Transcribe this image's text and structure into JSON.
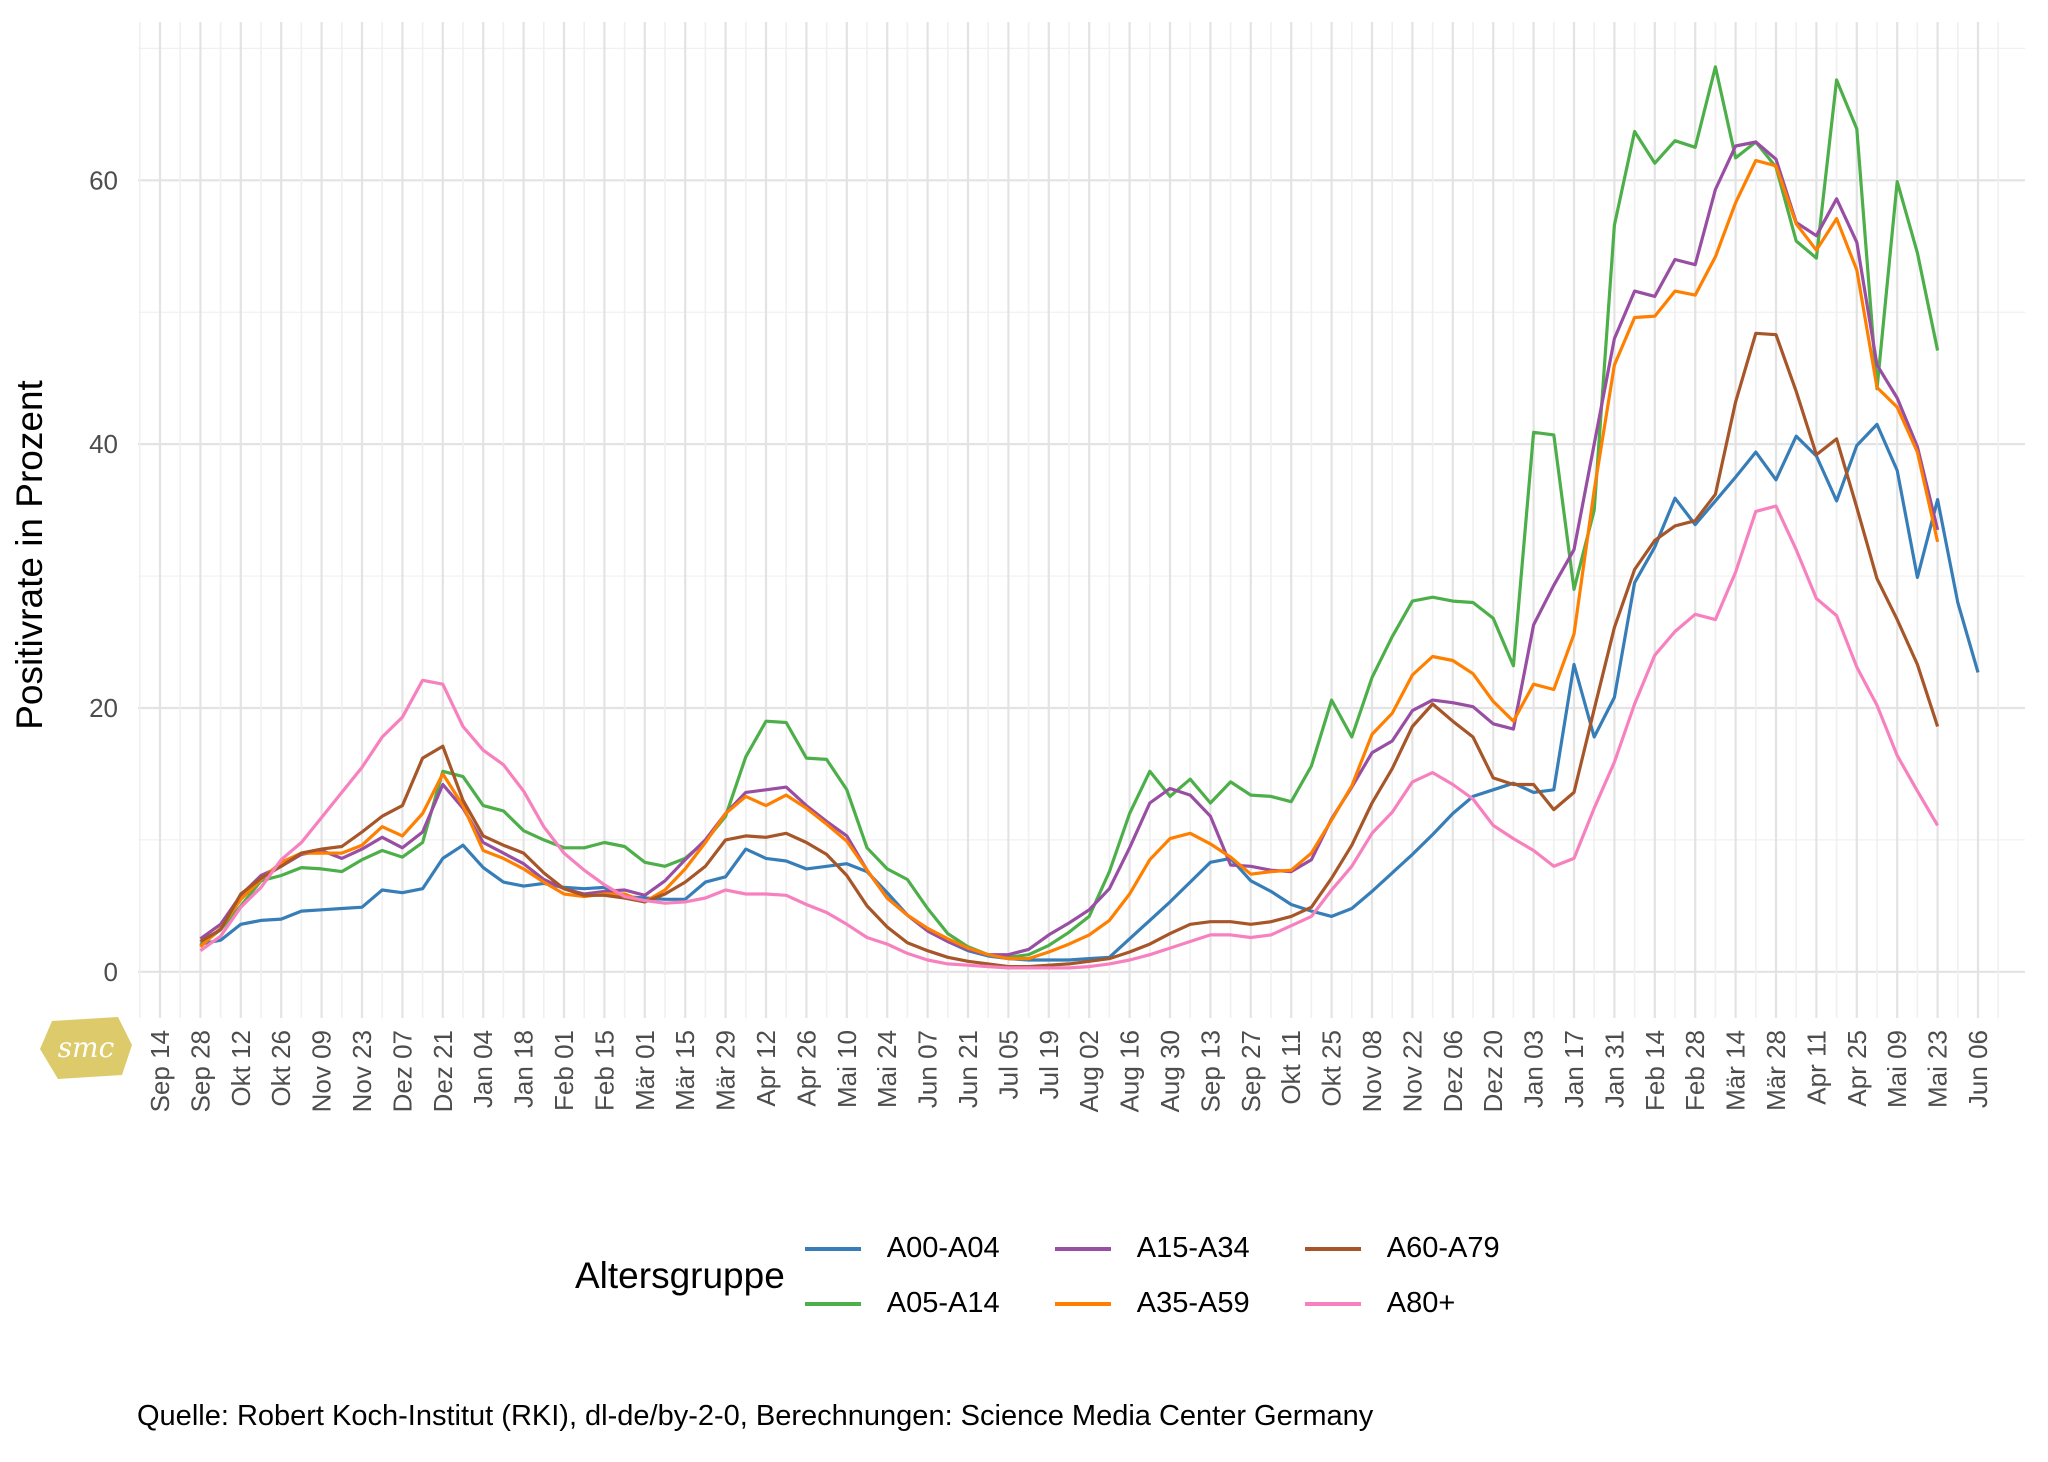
{
  "chart_data": {
    "type": "line",
    "ylabel": "Positivrate in Prozent",
    "ylim": [
      -3.5,
      72
    ],
    "yticks": [
      0,
      20,
      40,
      60
    ],
    "x_tick_labels": [
      "Sep 14",
      "Sep 28",
      "Okt 12",
      "Okt 26",
      "Nov 09",
      "Nov 23",
      "Dez 07",
      "Dez 21",
      "Jan 04",
      "Jan 18",
      "Feb 01",
      "Feb 15",
      "Mär 01",
      "Mär 15",
      "Mär 29",
      "Apr 12",
      "Apr 26",
      "Mai 10",
      "Mai 24",
      "Jun 07",
      "Jun 21",
      "Jul 05",
      "Jul 19",
      "Aug 02",
      "Aug 16",
      "Aug 30",
      "Sep 13",
      "Sep 27",
      "Okt 11",
      "Okt 25",
      "Nov 08",
      "Nov 22",
      "Dez 06",
      "Dez 20",
      "Jan 03",
      "Jan 17",
      "Jan 31",
      "Feb 14",
      "Feb 28",
      "Mär 14",
      "Mär 28",
      "Apr 11",
      "Apr 25",
      "Mai 09",
      "Mai 23",
      "Jun 06"
    ],
    "x_weekly_start_tick_index": 1,
    "legend_title": "Altersgruppe",
    "legend_position": "bottom",
    "grid": true,
    "series": [
      {
        "name": "A00-A04",
        "color": "#377eb8",
        "values": [
          2.1,
          2.4,
          3.6,
          3.9,
          4.0,
          4.6,
          4.7,
          4.8,
          4.9,
          6.2,
          6.0,
          6.3,
          8.6,
          9.6,
          7.9,
          6.8,
          6.5,
          6.7,
          6.4,
          6.3,
          6.4,
          5.7,
          5.6,
          5.5,
          5.5,
          6.8,
          7.2,
          9.3,
          8.6,
          8.4,
          7.8,
          8.0,
          8.2,
          7.6,
          6.0,
          4.3,
          3.1,
          2.3,
          1.6,
          1.2,
          1.0,
          0.9,
          0.9,
          0.9,
          1.0,
          1.1,
          2.5,
          3.9,
          5.3,
          6.8,
          8.3,
          8.6,
          6.9,
          6.1,
          5.1,
          4.6,
          4.2,
          4.8,
          6.1,
          7.5,
          8.9,
          10.4,
          12.0,
          13.3,
          13.8,
          14.3,
          13.6,
          13.8,
          23.3,
          17.8,
          20.8,
          29.5,
          32.2,
          35.9,
          33.9,
          35.7,
          37.5,
          39.4,
          37.3,
          40.6,
          39.1,
          35.7,
          39.9,
          41.5,
          38.0,
          29.9,
          35.8,
          28.0,
          22.7
        ]
      },
      {
        "name": "A05-A14",
        "color": "#4daf4a",
        "values": [
          2.0,
          3.2,
          5.0,
          6.9,
          7.3,
          7.9,
          7.8,
          7.6,
          8.5,
          9.2,
          8.7,
          9.8,
          15.2,
          14.8,
          12.6,
          12.2,
          10.7,
          10.0,
          9.4,
          9.4,
          9.8,
          9.5,
          8.3,
          8.0,
          8.6,
          9.9,
          11.8,
          16.3,
          19.0,
          18.9,
          16.2,
          16.1,
          13.8,
          9.4,
          7.8,
          7.0,
          4.8,
          2.9,
          1.9,
          1.3,
          1.1,
          1.3,
          2.0,
          3.0,
          4.2,
          7.6,
          12.0,
          15.2,
          13.3,
          14.6,
          12.8,
          14.4,
          13.4,
          13.3,
          12.9,
          15.6,
          20.6,
          17.8,
          22.3,
          25.4,
          28.1,
          28.4,
          28.1,
          28.0,
          26.8,
          23.2,
          40.9,
          40.7,
          29.0,
          35.0,
          56.6,
          63.7,
          61.3,
          63.0,
          62.5,
          68.6,
          61.7,
          62.9,
          61.0,
          55.4,
          54.1,
          67.6,
          63.9,
          44.2,
          59.9,
          54.5,
          47.1
        ]
      },
      {
        "name": "A15-A34",
        "color": "#984ea3",
        "values": [
          2.5,
          3.6,
          5.8,
          7.3,
          8.0,
          8.9,
          9.2,
          8.6,
          9.3,
          10.2,
          9.4,
          10.6,
          14.2,
          12.4,
          9.8,
          9.0,
          8.2,
          7.0,
          6.3,
          5.9,
          6.1,
          6.2,
          5.8,
          6.9,
          8.5,
          10.0,
          12.0,
          13.6,
          13.8,
          14.0,
          12.6,
          11.4,
          10.3,
          7.7,
          5.6,
          4.3,
          3.1,
          2.3,
          1.7,
          1.3,
          1.3,
          1.7,
          2.8,
          3.7,
          4.7,
          6.3,
          9.4,
          12.8,
          13.9,
          13.4,
          11.8,
          8.1,
          8.0,
          7.7,
          7.6,
          8.5,
          11.6,
          14.0,
          16.6,
          17.5,
          19.8,
          20.6,
          20.4,
          20.1,
          18.8,
          18.4,
          26.3,
          29.3,
          32.0,
          40.0,
          48.0,
          51.6,
          51.2,
          54.0,
          53.6,
          59.3,
          62.6,
          62.9,
          61.6,
          56.8,
          55.8,
          58.6,
          55.3,
          46.0,
          43.5,
          39.8,
          33.5
        ]
      },
      {
        "name": "A35-A59",
        "color": "#ff7f00",
        "values": [
          1.9,
          3.3,
          5.5,
          7.0,
          8.3,
          9.0,
          9.0,
          9.0,
          9.6,
          11.0,
          10.3,
          12.0,
          15.0,
          12.6,
          9.2,
          8.6,
          7.8,
          6.8,
          5.9,
          5.7,
          5.9,
          5.9,
          5.3,
          6.2,
          7.8,
          9.8,
          12.0,
          13.3,
          12.6,
          13.4,
          12.4,
          11.2,
          9.9,
          7.7,
          5.6,
          4.3,
          3.3,
          2.5,
          1.8,
          1.3,
          1.0,
          1.0,
          1.5,
          2.1,
          2.8,
          3.9,
          5.9,
          8.5,
          10.1,
          10.5,
          9.7,
          8.7,
          7.4,
          7.6,
          7.7,
          9.0,
          11.5,
          14.1,
          18.0,
          19.6,
          22.5,
          23.9,
          23.6,
          22.6,
          20.5,
          19.0,
          21.8,
          21.4,
          25.6,
          36.5,
          46.0,
          49.6,
          49.7,
          51.6,
          51.3,
          54.2,
          58.3,
          61.5,
          61.1,
          56.7,
          54.7,
          57.1,
          53.2,
          44.3,
          42.8,
          39.4,
          32.6
        ]
      },
      {
        "name": "A60-A79",
        "color": "#a65628",
        "values": [
          2.3,
          3.2,
          5.9,
          7.1,
          8.0,
          9.0,
          9.3,
          9.5,
          10.6,
          11.8,
          12.6,
          16.2,
          17.1,
          13.0,
          10.3,
          9.6,
          9.0,
          7.5,
          6.3,
          5.8,
          5.8,
          5.6,
          5.3,
          5.9,
          6.8,
          8.0,
          10.0,
          10.3,
          10.2,
          10.5,
          9.8,
          8.9,
          7.3,
          5.0,
          3.4,
          2.2,
          1.6,
          1.1,
          0.8,
          0.6,
          0.4,
          0.4,
          0.5,
          0.6,
          0.8,
          1.0,
          1.5,
          2.1,
          2.9,
          3.6,
          3.8,
          3.8,
          3.6,
          3.8,
          4.2,
          4.9,
          7.1,
          9.6,
          12.8,
          15.4,
          18.6,
          20.3,
          19.0,
          17.8,
          14.7,
          14.2,
          14.2,
          12.3,
          13.6,
          19.9,
          26.1,
          30.5,
          32.7,
          33.8,
          34.2,
          36.2,
          43.2,
          48.4,
          48.3,
          44.0,
          39.2,
          40.4,
          35.2,
          29.8,
          26.7,
          23.3,
          18.6
        ]
      },
      {
        "name": "A80+",
        "color": "#f781bf",
        "values": [
          1.6,
          2.7,
          4.9,
          6.4,
          8.5,
          9.8,
          11.7,
          13.6,
          15.5,
          17.8,
          19.3,
          22.1,
          21.8,
          18.6,
          16.8,
          15.7,
          13.7,
          11.0,
          9.0,
          7.7,
          6.6,
          5.7,
          5.4,
          5.2,
          5.3,
          5.6,
          6.2,
          5.9,
          5.9,
          5.8,
          5.1,
          4.5,
          3.6,
          2.6,
          2.1,
          1.4,
          0.9,
          0.6,
          0.5,
          0.4,
          0.3,
          0.3,
          0.3,
          0.3,
          0.4,
          0.6,
          0.9,
          1.3,
          1.8,
          2.3,
          2.8,
          2.8,
          2.6,
          2.8,
          3.5,
          4.2,
          6.2,
          8.0,
          10.5,
          12.1,
          14.4,
          15.1,
          14.2,
          13.1,
          11.1,
          10.1,
          9.2,
          8.0,
          8.6,
          12.4,
          15.9,
          20.3,
          24.0,
          25.8,
          27.1,
          26.7,
          30.3,
          34.9,
          35.3,
          32.0,
          28.3,
          27.0,
          23.1,
          20.2,
          16.4,
          13.7,
          11.1
        ]
      }
    ]
  },
  "caption": "Quelle: Robert Koch-Institut (RKI), dl-de/by-2-0, Berechnungen: Science Media Center Germany",
  "logo_text": "smc"
}
